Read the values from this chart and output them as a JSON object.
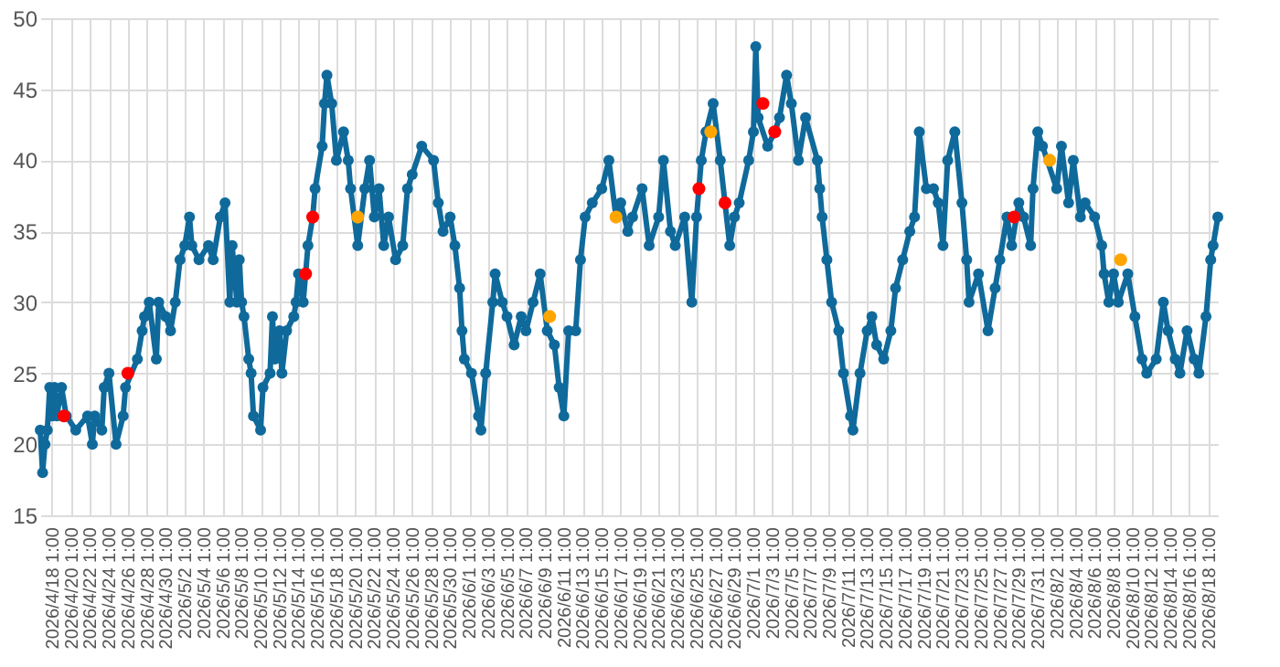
{
  "chart_data": {
    "type": "line",
    "marker": "circle",
    "line_style": "solid",
    "grid": true,
    "xlim": [
      "2026-04-16T19:00",
      "2026-08-19T01:00"
    ],
    "ylim": [
      15,
      50
    ],
    "yticks": [
      15,
      20,
      25,
      30,
      35,
      40,
      45,
      50
    ],
    "xticks": [
      {
        "value": "2026-04-18T01:00",
        "label": "2026/4/18 1:00"
      },
      {
        "value": "2026-04-20T01:00",
        "label": "2026/4/20 1:00"
      },
      {
        "value": "2026-04-22T01:00",
        "label": "2026/4/22 1:00"
      },
      {
        "value": "2026-04-24T01:00",
        "label": "2026/4/24 1:00"
      },
      {
        "value": "2026-04-26T01:00",
        "label": "2026/4/26 1:00"
      },
      {
        "value": "2026-04-28T01:00",
        "label": "2026/4/28 1:00"
      },
      {
        "value": "2026-04-30T01:00",
        "label": "2026/4/30 1:00"
      },
      {
        "value": "2026-05-02T01:00",
        "label": "2026/5/2 1:00"
      },
      {
        "value": "2026-05-04T01:00",
        "label": "2026/5/4 1:00"
      },
      {
        "value": "2026-05-06T01:00",
        "label": "2026/5/6 1:00"
      },
      {
        "value": "2026-05-08T01:00",
        "label": "2026/5/8 1:00"
      },
      {
        "value": "2026-05-10T01:00",
        "label": "2026/5/10 1:00"
      },
      {
        "value": "2026-05-12T01:00",
        "label": "2026/5/12 1:00"
      },
      {
        "value": "2026-05-14T01:00",
        "label": "2026/5/14 1:00"
      },
      {
        "value": "2026-05-16T01:00",
        "label": "2026/5/16 1:00"
      },
      {
        "value": "2026-05-18T01:00",
        "label": "2026/5/18 1:00"
      },
      {
        "value": "2026-05-20T01:00",
        "label": "2026/5/20 1:00"
      },
      {
        "value": "2026-05-22T01:00",
        "label": "2026/5/22 1:00"
      },
      {
        "value": "2026-05-24T01:00",
        "label": "2026/5/24 1:00"
      },
      {
        "value": "2026-05-26T01:00",
        "label": "2026/5/26 1:00"
      },
      {
        "value": "2026-05-28T01:00",
        "label": "2026/5/28 1:00"
      },
      {
        "value": "2026-05-30T01:00",
        "label": "2026/5/30 1:00"
      },
      {
        "value": "2026-06-01T01:00",
        "label": "2026/6/1 1:00"
      },
      {
        "value": "2026-06-03T01:00",
        "label": "2026/6/3 1:00"
      },
      {
        "value": "2026-06-05T01:00",
        "label": "2026/6/5 1:00"
      },
      {
        "value": "2026-06-07T01:00",
        "label": "2026/6/7 1:00"
      },
      {
        "value": "2026-06-09T01:00",
        "label": "2026/6/9 1:00"
      },
      {
        "value": "2026-06-11T01:00",
        "label": "2026/6/11 1:00"
      },
      {
        "value": "2026-06-13T01:00",
        "label": "2026/6/13 1:00"
      },
      {
        "value": "2026-06-15T01:00",
        "label": "2026/6/15 1:00"
      },
      {
        "value": "2026-06-17T01:00",
        "label": "2026/6/17 1:00"
      },
      {
        "value": "2026-06-19T01:00",
        "label": "2026/6/19 1:00"
      },
      {
        "value": "2026-06-21T01:00",
        "label": "2026/6/21 1:00"
      },
      {
        "value": "2026-06-23T01:00",
        "label": "2026/6/23 1:00"
      },
      {
        "value": "2026-06-25T01:00",
        "label": "2026/6/25 1:00"
      },
      {
        "value": "2026-06-27T01:00",
        "label": "2026/6/27 1:00"
      },
      {
        "value": "2026-06-29T01:00",
        "label": "2026/6/29 1:00"
      },
      {
        "value": "2026-07-01T01:00",
        "label": "2026/7/1 1:00"
      },
      {
        "value": "2026-07-03T01:00",
        "label": "2026/7/3 1:00"
      },
      {
        "value": "2026-07-05T01:00",
        "label": "2026/7/5 1:00"
      },
      {
        "value": "2026-07-07T01:00",
        "label": "2026/7/7 1:00"
      },
      {
        "value": "2026-07-09T01:00",
        "label": "2026/7/9 1:00"
      },
      {
        "value": "2026-07-11T01:00",
        "label": "2026/7/11 1:00"
      },
      {
        "value": "2026-07-13T01:00",
        "label": "2026/7/13 1:00"
      },
      {
        "value": "2026-07-15T01:00",
        "label": "2026/7/15 1:00"
      },
      {
        "value": "2026-07-17T01:00",
        "label": "2026/7/17 1:00"
      },
      {
        "value": "2026-07-19T01:00",
        "label": "2026/7/19 1:00"
      },
      {
        "value": "2026-07-21T01:00",
        "label": "2026/7/21 1:00"
      },
      {
        "value": "2026-07-23T01:00",
        "label": "2026/7/23 1:00"
      },
      {
        "value": "2026-07-25T01:00",
        "label": "2026/7/25 1:00"
      },
      {
        "value": "2026-07-27T01:00",
        "label": "2026/7/27 1:00"
      },
      {
        "value": "2026-07-29T01:00",
        "label": "2026/7/29 1:00"
      },
      {
        "value": "2026-07-31T01:00",
        "label": "2026/7/31 1:00"
      },
      {
        "value": "2026-08-02T01:00",
        "label": "2026/8/2 1:00"
      },
      {
        "value": "2026-08-04T01:00",
        "label": "2026/8/4 1:00"
      },
      {
        "value": "2026-08-06T01:00",
        "label": "2026/8/6 1:00"
      },
      {
        "value": "2026-08-08T01:00",
        "label": "2026/8/8 1:00"
      },
      {
        "value": "2026-08-10T01:00",
        "label": "2026/8/10 1:00"
      },
      {
        "value": "2026-08-12T01:00",
        "label": "2026/8/12 1:00"
      },
      {
        "value": "2026-08-14T01:00",
        "label": "2026/8/14 1:00"
      },
      {
        "value": "2026-08-16T01:00",
        "label": "2026/8/16 1:00"
      },
      {
        "value": "2026-08-18T01:00",
        "label": "2026/8/18 1:00"
      }
    ],
    "series": [
      {
        "color": "#0f6a9b",
        "x": [
          "2026-04-16T19:00",
          "2026-04-17T01:00",
          "2026-04-17T07:00",
          "2026-04-17T13:00",
          "2026-04-17T19:00",
          "2026-04-18T01:00",
          "2026-04-18T07:00",
          "2026-04-18T13:00",
          "2026-04-19T01:00",
          "2026-04-19T13:00",
          "2026-04-20T13:00",
          "2026-04-21T19:00",
          "2026-04-22T07:00",
          "2026-04-22T13:00",
          "2026-04-23T07:00",
          "2026-04-23T13:00",
          "2026-04-24T01:00",
          "2026-04-24T19:00",
          "2026-04-25T13:00",
          "2026-04-25T19:00",
          "2026-04-27T01:00",
          "2026-04-27T13:00",
          "2026-04-27T19:00",
          "2026-04-28T07:00",
          "2026-04-29T01:00",
          "2026-04-29T07:00",
          "2026-04-30T01:00",
          "2026-04-30T13:00",
          "2026-05-01T01:00",
          "2026-05-01T13:00",
          "2026-05-02T01:00",
          "2026-05-02T13:00",
          "2026-05-02T19:00",
          "2026-05-03T13:00",
          "2026-05-04T13:00",
          "2026-05-05T01:00",
          "2026-05-05T19:00",
          "2026-05-06T07:00",
          "2026-05-06T19:00",
          "2026-05-07T01:00",
          "2026-05-07T13:00",
          "2026-05-07T19:00",
          "2026-05-08T01:00",
          "2026-05-08T07:00",
          "2026-05-08T19:00",
          "2026-05-09T01:00",
          "2026-05-09T07:00",
          "2026-05-10T01:00",
          "2026-05-10T07:00",
          "2026-05-11T01:00",
          "2026-05-11T07:00",
          "2026-05-11T13:00",
          "2026-05-12T01:00",
          "2026-05-12T07:00",
          "2026-05-12T19:00",
          "2026-05-13T13:00",
          "2026-05-13T19:00",
          "2026-05-14T01:00",
          "2026-05-14T13:00",
          "2026-05-15T01:00",
          "2026-05-15T13:00",
          "2026-05-15T19:00",
          "2026-05-16T13:00",
          "2026-05-16T19:00",
          "2026-05-17T01:00",
          "2026-05-17T13:00",
          "2026-05-18T01:00",
          "2026-05-18T19:00",
          "2026-05-19T07:00",
          "2026-05-19T13:00",
          "2026-05-20T07:00",
          "2026-05-21T01:00",
          "2026-05-21T13:00",
          "2026-05-22T01:00",
          "2026-05-22T13:00",
          "2026-05-23T01:00",
          "2026-05-23T13:00",
          "2026-05-24T07:00",
          "2026-05-25T01:00",
          "2026-05-25T13:00",
          "2026-05-26T01:00",
          "2026-05-27T01:00",
          "2026-05-28T07:00",
          "2026-05-28T19:00",
          "2026-05-29T07:00",
          "2026-05-30T01:00",
          "2026-05-30T13:00",
          "2026-05-31T01:00",
          "2026-05-31T07:00",
          "2026-05-31T13:00",
          "2026-06-01T07:00",
          "2026-06-02T01:00",
          "2026-06-02T07:00",
          "2026-06-02T19:00",
          "2026-06-03T13:00",
          "2026-06-03T19:00",
          "2026-06-04T13:00",
          "2026-06-05T01:00",
          "2026-06-05T19:00",
          "2026-06-06T13:00",
          "2026-06-07T01:00",
          "2026-06-07T19:00",
          "2026-06-08T13:00",
          "2026-06-09T07:00",
          "2026-06-10T01:00",
          "2026-06-10T13:00",
          "2026-06-11T01:00",
          "2026-06-11T13:00",
          "2026-06-12T07:00",
          "2026-06-12T19:00",
          "2026-06-13T07:00",
          "2026-06-14T01:00",
          "2026-06-15T01:00",
          "2026-06-15T19:00",
          "2026-06-16T13:00",
          "2026-06-17T01:00",
          "2026-06-17T19:00",
          "2026-06-18T07:00",
          "2026-06-19T07:00",
          "2026-06-20T01:00",
          "2026-06-21T01:00",
          "2026-06-21T13:00",
          "2026-06-22T07:00",
          "2026-06-22T19:00",
          "2026-06-23T19:00",
          "2026-06-24T13:00",
          "2026-06-25T01:00",
          "2026-06-25T13:00",
          "2026-06-26T01:00",
          "2026-06-26T19:00",
          "2026-06-27T13:00",
          "2026-06-28T01:00",
          "2026-06-28T13:00",
          "2026-06-29T01:00",
          "2026-06-29T13:00",
          "2026-06-30T13:00",
          "2026-07-01T01:00",
          "2026-07-01T07:00",
          "2026-07-01T13:00",
          "2026-07-02T13:00",
          "2026-07-03T07:00",
          "2026-07-03T19:00",
          "2026-07-04T13:00",
          "2026-07-05T01:00",
          "2026-07-05T19:00",
          "2026-07-06T13:00",
          "2026-07-07T19:00",
          "2026-07-08T01:00",
          "2026-07-08T07:00",
          "2026-07-08T19:00",
          "2026-07-09T07:00",
          "2026-07-10T01:00",
          "2026-07-10T13:00",
          "2026-07-11T07:00",
          "2026-07-11T13:00",
          "2026-07-12T07:00",
          "2026-07-13T01:00",
          "2026-07-13T13:00",
          "2026-07-14T01:00",
          "2026-07-14T19:00",
          "2026-07-15T13:00",
          "2026-07-16T01:00",
          "2026-07-16T19:00",
          "2026-07-17T13:00",
          "2026-07-18T01:00",
          "2026-07-18T13:00",
          "2026-07-19T07:00",
          "2026-07-20T01:00",
          "2026-07-20T13:00",
          "2026-07-21T01:00",
          "2026-07-21T13:00",
          "2026-07-22T07:00",
          "2026-07-23T01:00",
          "2026-07-23T13:00",
          "2026-07-23T19:00",
          "2026-07-24T19:00",
          "2026-07-25T19:00",
          "2026-07-26T13:00",
          "2026-07-27T01:00",
          "2026-07-27T19:00",
          "2026-07-28T07:00",
          "2026-07-29T01:00",
          "2026-07-29T13:00",
          "2026-07-30T07:00",
          "2026-07-30T13:00",
          "2026-07-31T01:00",
          "2026-07-31T13:00",
          "2026-08-02T01:00",
          "2026-08-02T13:00",
          "2026-08-03T07:00",
          "2026-08-03T19:00",
          "2026-08-04T13:00",
          "2026-08-05T01:00",
          "2026-08-06T01:00",
          "2026-08-06T19:00",
          "2026-08-07T01:00",
          "2026-08-07T13:00",
          "2026-08-08T01:00",
          "2026-08-08T13:00",
          "2026-08-09T13:00",
          "2026-08-10T07:00",
          "2026-08-11T01:00",
          "2026-08-11T13:00",
          "2026-08-12T13:00",
          "2026-08-13T07:00",
          "2026-08-13T19:00",
          "2026-08-14T13:00",
          "2026-08-15T01:00",
          "2026-08-15T19:00",
          "2026-08-16T13:00",
          "2026-08-17T01:00",
          "2026-08-17T19:00",
          "2026-08-18T07:00",
          "2026-08-18T13:00",
          "2026-08-19T01:00"
        ],
        "values": [
          21,
          18,
          20,
          21,
          24,
          22,
          24,
          22,
          24,
          22,
          21,
          22,
          20,
          22,
          21,
          24,
          25,
          20,
          22,
          24,
          26,
          28,
          29,
          30,
          26,
          30,
          29,
          28,
          30,
          33,
          34,
          36,
          34,
          33,
          34,
          33,
          36,
          37,
          30,
          34,
          30,
          33,
          30,
          29,
          26,
          25,
          22,
          21,
          24,
          25,
          29,
          26,
          28,
          25,
          28,
          29,
          30,
          32,
          30,
          34,
          36,
          38,
          41,
          44,
          46,
          44,
          40,
          42,
          40,
          38,
          34,
          38,
          40,
          36,
          38,
          34,
          36,
          33,
          34,
          38,
          39,
          41,
          40,
          37,
          35,
          36,
          34,
          31,
          28,
          26,
          25,
          22,
          21,
          25,
          30,
          32,
          30,
          29,
          27,
          29,
          28,
          30,
          32,
          28,
          27,
          24,
          22,
          28,
          28,
          33,
          36,
          37,
          38,
          40,
          36,
          37,
          35,
          36,
          38,
          34,
          36,
          40,
          35,
          34,
          36,
          30,
          36,
          40,
          42,
          44,
          40,
          37,
          34,
          36,
          37,
          40,
          42,
          48,
          43,
          41,
          42,
          43,
          46,
          44,
          40,
          43,
          40,
          38,
          36,
          33,
          30,
          28,
          25,
          22,
          21,
          25,
          28,
          29,
          27,
          26,
          28,
          31,
          33,
          35,
          36,
          42,
          38,
          38,
          37,
          34,
          40,
          42,
          37,
          33,
          30,
          32,
          28,
          31,
          33,
          36,
          34,
          37,
          36,
          34,
          38,
          42,
          41,
          38,
          41,
          37,
          40,
          36,
          37,
          36,
          34,
          32,
          30,
          32,
          30,
          32,
          29,
          26,
          25,
          26,
          30,
          28,
          26,
          25,
          28,
          26,
          25,
          29,
          33,
          34,
          36
        ]
      },
      {
        "type": "scatter",
        "color": "#ff0000",
        "x": [
          "2026-04-19T07:00",
          "2026-04-26T01:00",
          "2026-05-14T19:00",
          "2026-05-15T13:00",
          "2026-06-25T07:00",
          "2026-06-28T01:00",
          "2026-07-02T01:00",
          "2026-07-03T07:00",
          "2026-07-28T13:00"
        ],
        "values": [
          22,
          25,
          32,
          36,
          38,
          37,
          44,
          42,
          36
        ]
      },
      {
        "type": "scatter",
        "color": "#ffa500",
        "x": [
          "2026-05-20T07:00",
          "2026-06-09T13:00",
          "2026-06-16T13:00",
          "2026-06-26T13:00",
          "2026-08-01T07:00",
          "2026-08-08T19:00"
        ],
        "values": [
          36,
          29,
          36,
          42,
          40,
          33
        ]
      }
    ]
  }
}
